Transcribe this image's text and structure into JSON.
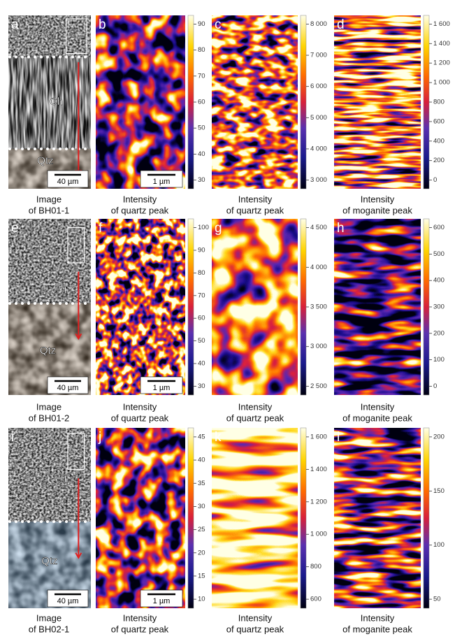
{
  "panels": [
    {
      "letter": "a",
      "labels": [
        "Pg",
        "Ch",
        "Qtz"
      ],
      "scale_bar": "40 µm",
      "caption": [
        "Image",
        "of BH01-1"
      ]
    },
    {
      "letter": "b",
      "scale_bar": "1 µm",
      "colorbar_ticks": [
        "90",
        "80",
        "70",
        "60",
        "50",
        "40",
        "30"
      ],
      "caption": [
        "Intensity",
        "of quartz peak"
      ]
    },
    {
      "letter": "c",
      "colorbar_ticks": [
        "8 000",
        "7 000",
        "6 000",
        "5 000",
        "4 000",
        "3 000"
      ],
      "caption": [
        "Intensity",
        "of quartz peak"
      ]
    },
    {
      "letter": "d",
      "colorbar_ticks": [
        "1 600",
        "1 400",
        "1 200",
        "1 000",
        "800",
        "600",
        "400",
        "200",
        "0"
      ],
      "caption": [
        "Intensity",
        "of moganite peak"
      ]
    },
    {
      "letter": "e",
      "labels": [
        "Pg",
        "Qtz"
      ],
      "scale_bar": "40 µm",
      "caption": [
        "Image",
        "of BH01-2"
      ]
    },
    {
      "letter": "f",
      "scale_bar": "1 µm",
      "colorbar_ticks": [
        "100",
        "90",
        "80",
        "70",
        "60",
        "50",
        "40",
        "30"
      ],
      "caption": [
        "Intensity",
        "of quartz peak"
      ]
    },
    {
      "letter": "g",
      "colorbar_ticks": [
        "4 500",
        "4 000",
        "3 500",
        "3 000",
        "2 500"
      ],
      "caption": [
        "Intensity",
        "of quartz peak"
      ]
    },
    {
      "letter": "h",
      "colorbar_ticks": [
        "600",
        "500",
        "400",
        "300",
        "200",
        "100",
        "0"
      ],
      "caption": [
        "Intensity",
        "of moganite peak"
      ]
    },
    {
      "letter": "i",
      "labels": [
        "Pg",
        "Qtz"
      ],
      "scale_bar": "40 µm",
      "caption": [
        "Image",
        "of BH02-1"
      ]
    },
    {
      "letter": "j",
      "scale_bar": "1 µm",
      "colorbar_ticks": [
        "45",
        "40",
        "35",
        "30",
        "25",
        "20",
        "15",
        "10"
      ],
      "caption": [
        "Intensity",
        "of quartz peak"
      ]
    },
    {
      "letter": "k",
      "colorbar_ticks": [
        "1 600",
        "1 400",
        "1 200",
        "1 000",
        "800",
        "600"
      ],
      "caption": [
        "Intensity",
        "of quartz peak"
      ]
    },
    {
      "letter": "l",
      "colorbar_ticks": [
        "200",
        "150",
        "100",
        "50"
      ],
      "caption": [
        "Intensity",
        "of moganite peak"
      ]
    }
  ]
}
